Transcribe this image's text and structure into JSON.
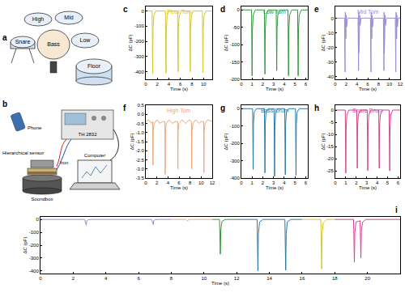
{
  "chart_data": [
    {
      "panel": "c",
      "type": "line",
      "title": "Floor Tom",
      "x_label": "Time (s)",
      "y_label": "ΔC (pF)",
      "grid": false,
      "xlim": [
        0,
        11.5
      ],
      "xticks": [
        0,
        2,
        4,
        6,
        8,
        10
      ],
      "ylim": [
        -450,
        30
      ],
      "yticks": [
        -400,
        -300,
        -200,
        -100,
        0
      ],
      "series": [
        {
          "color": "#d8c62a",
          "x": [
            0,
            1.1,
            1.2,
            1.25,
            1.4,
            1.7,
            3.4,
            3.5,
            3.55,
            3.7,
            4.0,
            5.5,
            5.6,
            5.65,
            5.8,
            6.1,
            7.6,
            7.7,
            7.75,
            7.9,
            8.2,
            9.8,
            9.9,
            9.95,
            10.1,
            10.4,
            11.5
          ],
          "values": [
            0,
            0,
            -410,
            -120,
            -30,
            0,
            0,
            -410,
            -120,
            -30,
            0,
            0,
            -400,
            -110,
            -30,
            0,
            0,
            -400,
            -120,
            -30,
            0,
            0,
            -405,
            -120,
            -30,
            0,
            0
          ]
        }
      ]
    },
    {
      "panel": "d",
      "type": "line",
      "title": "Low Tom",
      "x_label": "Time (s)",
      "y_label": "ΔC (pF)",
      "grid": false,
      "xlim": [
        0,
        6.2
      ],
      "xticks": [
        0,
        1,
        2,
        3,
        4,
        5,
        6
      ],
      "ylim": [
        -200,
        10
      ],
      "yticks": [
        -200,
        -150,
        -100,
        -50,
        0
      ],
      "series": [
        {
          "color": "#2f9a3a",
          "x": [
            0,
            0.95,
            1.0,
            1.03,
            1.1,
            1.3,
            2.15,
            2.2,
            2.23,
            2.3,
            2.5,
            3.25,
            3.3,
            3.33,
            3.4,
            3.6,
            4.35,
            4.4,
            4.43,
            4.5,
            4.7,
            5.25,
            5.3,
            5.33,
            5.4,
            5.6,
            6.2
          ],
          "values": [
            0,
            0,
            -190,
            -60,
            -15,
            0,
            0,
            -185,
            -60,
            -15,
            0,
            0,
            -175,
            -55,
            -15,
            0,
            0,
            -190,
            -60,
            -15,
            0,
            0,
            -190,
            -60,
            -15,
            0,
            0
          ]
        }
      ]
    },
    {
      "panel": "e",
      "type": "line",
      "title": "Mid Tom",
      "x_label": "Time (s)",
      "y_label": "ΔC (pF)",
      "grid": false,
      "xlim": [
        0,
        12
      ],
      "xticks": [
        0,
        2,
        4,
        6,
        8,
        10,
        12
      ],
      "ylim": [
        -42,
        8
      ],
      "yticks": [
        -40,
        -30,
        -20,
        -10,
        0
      ],
      "series": [
        {
          "color": "#9a8fd8",
          "x": [
            0,
            1.7,
            1.8,
            1.83,
            1.86,
            1.9,
            1.95,
            2.0,
            2.1,
            2.25,
            4.2,
            4.3,
            4.33,
            4.36,
            4.4,
            4.45,
            4.5,
            4.6,
            4.75,
            6.5,
            6.6,
            6.63,
            6.66,
            6.7,
            6.75,
            6.8,
            6.9,
            7.05,
            8.9,
            9.0,
            9.03,
            9.06,
            9.1,
            9.15,
            9.2,
            9.3,
            9.45,
            11.1,
            11.2,
            11.23,
            11.26,
            11.3,
            11.35,
            11.4,
            11.5,
            11.65,
            12
          ],
          "values": [
            0,
            0,
            -37,
            4,
            -25,
            3,
            -14,
            2,
            -6,
            0,
            0,
            -36,
            4,
            -24,
            3,
            -13,
            2,
            -5,
            0,
            0,
            -37,
            4,
            -26,
            3,
            -14,
            2,
            -6,
            0,
            0,
            -36,
            4,
            -24,
            3,
            -13,
            2,
            -5,
            0,
            0,
            -37,
            4,
            -25,
            3,
            -14,
            2,
            -6,
            0,
            0
          ]
        }
      ]
    },
    {
      "panel": "f",
      "type": "line",
      "title": "High Tom",
      "x_label": "Time (s)",
      "y_label": "ΔC (pF)",
      "grid": false,
      "xlim": [
        0,
        12
      ],
      "xticks": [
        0,
        2,
        4,
        6,
        8,
        10,
        12
      ],
      "ylim": [
        -3.5,
        0.5
      ],
      "yticks": [
        -3.5,
        {
          "value": -3,
          "label": "-3.0"
        },
        -2.5,
        {
          "value": -2,
          "label": "-2.0"
        },
        -1.5,
        {
          "value": -1,
          "label": "-1.0"
        },
        -0.5,
        {
          "value": 0,
          "label": "0.0"
        },
        0.5
      ],
      "series": [
        {
          "color": "#f2a578",
          "x": [
            0,
            0.5,
            1.0,
            1.25,
            1.3,
            1.35,
            1.5,
            2.0,
            2.5,
            3.0,
            3.45,
            3.5,
            3.55,
            3.7,
            4.2,
            4.8,
            5.3,
            5.75,
            5.8,
            5.85,
            6.0,
            6.6,
            7.2,
            7.8,
            8.25,
            8.3,
            8.35,
            8.5,
            9.0,
            9.6,
            10.0,
            10.45,
            10.5,
            10.55,
            10.7,
            11.2,
            12
          ],
          "values": [
            -0.4,
            -0.3,
            -0.5,
            -0.4,
            -2.8,
            -0.9,
            -0.5,
            -0.3,
            -0.5,
            -0.4,
            -0.4,
            -3.3,
            -1.0,
            -0.5,
            -0.3,
            -0.5,
            -0.4,
            -0.4,
            -3.0,
            -0.9,
            -0.5,
            -0.3,
            -0.5,
            -0.3,
            -0.4,
            -3.0,
            -0.9,
            -0.5,
            -0.3,
            -0.5,
            -0.4,
            -0.4,
            -3.2,
            -1.0,
            -0.5,
            -0.3,
            -0.4
          ]
        }
      ]
    },
    {
      "panel": "g",
      "type": "line",
      "title": "Bass Drum",
      "x_label": "Time (s)",
      "y_label": "ΔC (pF)",
      "grid": false,
      "xlim": [
        0,
        6.2
      ],
      "xticks": [
        0,
        1,
        2,
        3,
        4,
        5,
        6
      ],
      "ylim": [
        -400,
        20
      ],
      "yticks": [
        -400,
        -300,
        -200,
        -100,
        0
      ],
      "series": [
        {
          "color": "#2a78a8",
          "x": [
            0,
            1.05,
            1.1,
            1.13,
            1.2,
            1.4,
            2.15,
            2.2,
            2.23,
            2.3,
            2.5,
            3.05,
            3.1,
            3.13,
            3.2,
            3.4,
            4.05,
            4.1,
            4.13,
            4.2,
            4.4,
            5.05,
            5.1,
            5.13,
            5.2,
            5.4,
            6.2
          ],
          "values": [
            0,
            0,
            -350,
            -90,
            -20,
            0,
            0,
            -370,
            -90,
            -20,
            0,
            0,
            -390,
            -100,
            -20,
            0,
            0,
            -380,
            -95,
            -20,
            0,
            0,
            -385,
            -95,
            -20,
            0,
            0
          ]
        }
      ]
    },
    {
      "panel": "h",
      "type": "line",
      "title": "Snare Drum",
      "x_label": "Time (s)",
      "y_label": "ΔC (pF)",
      "grid": false,
      "xlim": [
        0,
        6.2
      ],
      "xticks": [
        0,
        1,
        2,
        3,
        4,
        5,
        6
      ],
      "ylim": [
        -28,
        2
      ],
      "yticks": [
        -25,
        -20,
        -15,
        -10,
        -5,
        0
      ],
      "series": [
        {
          "color": "#d2458e",
          "x": [
            0,
            0.95,
            1.0,
            1.03,
            1.1,
            1.3,
            2.05,
            2.1,
            2.13,
            2.2,
            2.4,
            3.05,
            3.1,
            3.13,
            3.2,
            3.4,
            4.15,
            4.2,
            4.23,
            4.3,
            4.5,
            5.15,
            5.2,
            5.23,
            5.3,
            5.5,
            6.2
          ],
          "values": [
            0,
            0,
            -26,
            -8,
            -2,
            0,
            0,
            -24,
            -7,
            -2,
            0,
            0,
            -25,
            -8,
            -2,
            0,
            0,
            -24,
            -7,
            -2,
            0,
            0,
            -25,
            -8,
            -2,
            0,
            0
          ]
        }
      ]
    },
    {
      "panel": "i",
      "type": "line",
      "x_label": "Time (s)",
      "y_label": "ΔC (pF)",
      "grid": false,
      "xlim": [
        0,
        22
      ],
      "xticks": [
        0,
        2,
        4,
        6,
        8,
        10,
        12,
        14,
        16,
        18,
        20
      ],
      "ylim": [
        -420,
        20
      ],
      "yticks": [
        -400,
        -300,
        -200,
        -100,
        0
      ],
      "series": [
        {
          "color": "#9a8fd8",
          "x": [
            0,
            2.7,
            2.8,
            2.83,
            2.9,
            3.1,
            6.8,
            6.9,
            6.93,
            7.0,
            7.2,
            8.0
          ],
          "values": [
            0,
            0,
            -45,
            -10,
            -3,
            0,
            0,
            -40,
            -8,
            -3,
            0,
            0
          ]
        },
        {
          "color": "#f2a578",
          "x": [
            8.0,
            8.9,
            9.0,
            9.03,
            9.1,
            9.3,
            10.5
          ],
          "values": [
            0,
            0,
            -12,
            -3,
            -1,
            0,
            0
          ]
        },
        {
          "color": "#2f9a3a",
          "x": [
            10.5,
            10.95,
            11.0,
            11.03,
            11.1,
            11.3,
            12.0
          ],
          "values": [
            0,
            0,
            -270,
            -80,
            -15,
            0,
            0
          ]
        },
        {
          "color": "#2a78a8",
          "x": [
            12.0,
            13.25,
            13.3,
            13.33,
            13.4,
            13.6,
            14.95,
            15.0,
            15.03,
            15.1,
            15.3,
            16.0
          ],
          "values": [
            0,
            0,
            -400,
            -110,
            -20,
            0,
            0,
            -395,
            -110,
            -20,
            0,
            0
          ]
        },
        {
          "color": "#d8c62a",
          "x": [
            16.0,
            17.15,
            17.2,
            17.23,
            17.3,
            17.5,
            18.0
          ],
          "values": [
            0,
            0,
            -385,
            -110,
            -25,
            0,
            0
          ]
        },
        {
          "color": "#d2458e",
          "x": [
            18.0,
            19.15,
            19.2,
            19.23,
            19.3,
            19.55,
            19.6,
            19.63,
            19.7,
            19.9,
            22.0
          ],
          "values": [
            0,
            0,
            -330,
            -100,
            -20,
            -10,
            -300,
            -90,
            -20,
            0,
            0
          ]
        }
      ]
    }
  ],
  "diagrams": {
    "a": {
      "panel": "a",
      "labels": {
        "high": "High",
        "mid": "Mid",
        "snare": "Snare",
        "bass": "Bass",
        "low": "Low",
        "floor": "Floor"
      }
    },
    "b": {
      "panel": "b",
      "labels": {
        "phone": "Phone",
        "instrument": "TH 2832",
        "computer": "Computer",
        "sensor": "Hierarchical sensor",
        "iron": "Iron",
        "soundbox": "Soundbox"
      }
    }
  }
}
